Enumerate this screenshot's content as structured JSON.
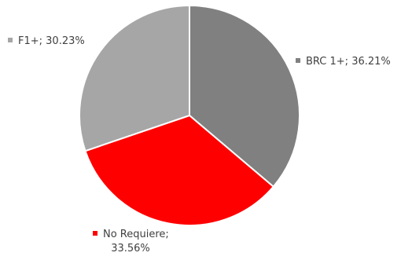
{
  "chart_data": {
    "type": "pie",
    "title": "",
    "start_angle_deg": 0,
    "direction": "clockwise",
    "slices": [
      {
        "label": "BRC 1+",
        "value": 36.21,
        "display": "BRC 1+; 36.21%",
        "color": "#808080"
      },
      {
        "label": "No Requiere",
        "value": 33.56,
        "display_lines": [
          "No Requiere;",
          "33.56%"
        ],
        "color": "#ff0000"
      },
      {
        "label": "F1+",
        "value": 30.23,
        "display": "F1+; 30.23%",
        "color": "#a6a6a6"
      }
    ]
  }
}
